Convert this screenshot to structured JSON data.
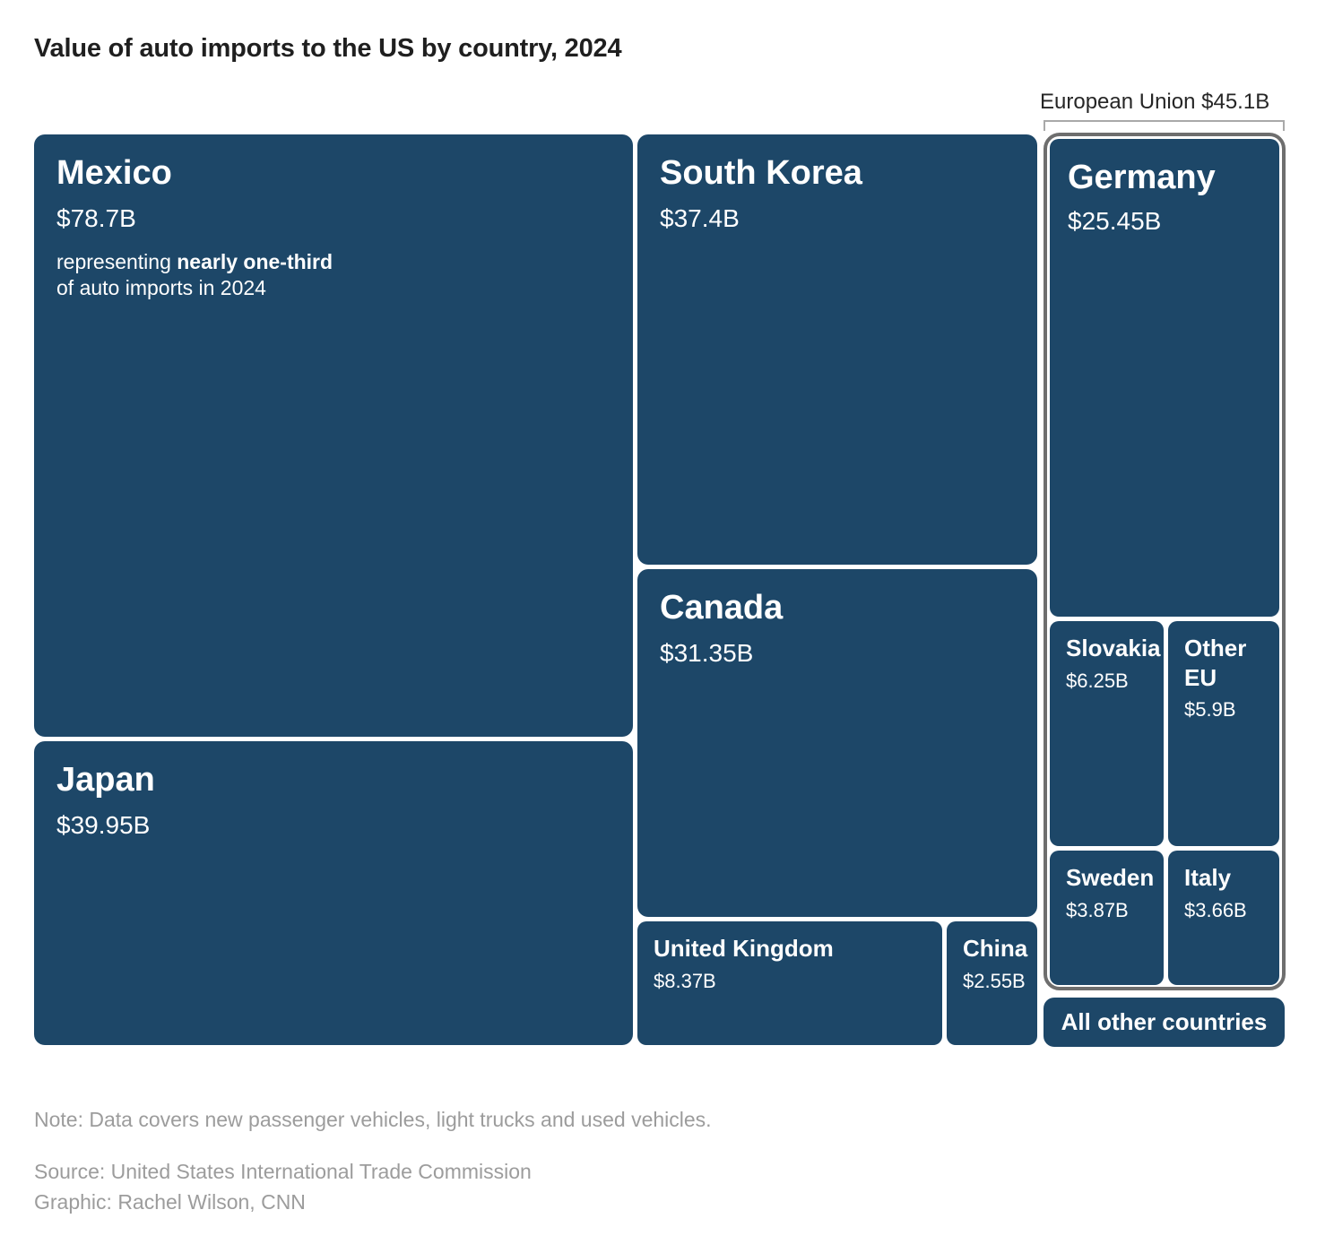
{
  "title": "Value of auto imports to the US by country, 2024",
  "eu_group": {
    "label": "European Union",
    "value": "$45.1B"
  },
  "blocks": {
    "mexico": {
      "label": "Mexico",
      "value": "$78.7B"
    },
    "japan": {
      "label": "Japan",
      "value": "$39.95B"
    },
    "south_korea": {
      "label": "South Korea",
      "value": "$37.4B"
    },
    "canada": {
      "label": "Canada",
      "value": "$31.35B"
    },
    "united_kingdom": {
      "label": "United Kingdom",
      "value": "$8.37B"
    },
    "china": {
      "label": "China",
      "value": "$2.55B"
    },
    "germany": {
      "label": "Germany",
      "value": "$25.45B"
    },
    "slovakia": {
      "label": "Slovakia",
      "value": "$6.25B"
    },
    "other_eu": {
      "label": "Other EU",
      "value": "$5.9B"
    },
    "sweden": {
      "label": "Sweden",
      "value": "$3.87B"
    },
    "italy": {
      "label": "Italy",
      "value": "$3.66B"
    }
  },
  "mexico_annotation": {
    "pre": "representing ",
    "bold": "nearly one-third",
    "line2": "of auto imports in 2024"
  },
  "all_other": {
    "label": "All other countries"
  },
  "footer": {
    "note": "Note: Data covers new passenger vehicles, light trucks and used vehicles.",
    "source": "Source: United States International Trade Commission",
    "credit": "Graphic: Rachel Wilson, CNN"
  },
  "colors": {
    "tile_blue": "#1d4768",
    "eu_border": "#6e6e6e",
    "bracket_gray": "#a9a9a9",
    "title_text": "#1f1f1f",
    "footer_text": "#9c9c9c",
    "tile_text": "#ffffff"
  },
  "chart_data": {
    "type": "treemap",
    "title": "Value of auto imports to the US by country, 2024",
    "unit": "USD billions",
    "items": [
      {
        "label": "Mexico",
        "value": 78.7,
        "display": "$78.7B",
        "annotation": "representing nearly one-third of auto imports in 2024"
      },
      {
        "label": "Japan",
        "value": 39.95,
        "display": "$39.95B"
      },
      {
        "label": "South Korea",
        "value": 37.4,
        "display": "$37.4B"
      },
      {
        "label": "Canada",
        "value": 31.35,
        "display": "$31.35B"
      },
      {
        "label": "United Kingdom",
        "value": 8.37,
        "display": "$8.37B"
      },
      {
        "label": "China",
        "value": 2.55,
        "display": "$2.55B"
      },
      {
        "label": "European Union",
        "value": 45.1,
        "display": "$45.1B",
        "children": [
          {
            "label": "Germany",
            "value": 25.45,
            "display": "$25.45B"
          },
          {
            "label": "Slovakia",
            "value": 6.25,
            "display": "$6.25B"
          },
          {
            "label": "Other EU",
            "value": 5.9,
            "display": "$5.9B"
          },
          {
            "label": "Sweden",
            "value": 3.87,
            "display": "$3.87B"
          },
          {
            "label": "Italy",
            "value": 3.66,
            "display": "$3.66B"
          }
        ]
      },
      {
        "label": "All other countries",
        "value": null,
        "display": ""
      }
    ],
    "note": "Note: Data covers new passenger vehicles, light trucks and used vehicles.",
    "source": "Source: United States International Trade Commission",
    "credit": "Graphic: Rachel Wilson, CNN"
  }
}
